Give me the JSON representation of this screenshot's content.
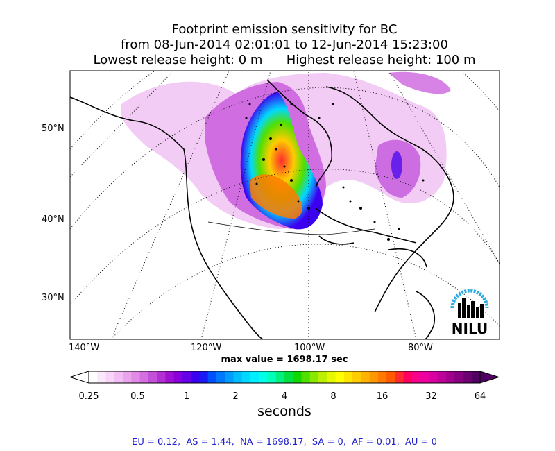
{
  "title": {
    "line1": "Footprint emission sensitivity for BC",
    "line2": "from 08-Jun-2014 02:01:01 to 12-Jun-2014 15:23:00",
    "line3": "Lowest release height: 0 m      Highest release height: 100 m"
  },
  "map": {
    "lat_labels": [
      "50°N",
      "40°N",
      "30°N"
    ],
    "lon_labels": [
      "140°W",
      "120°W",
      "100°W",
      "80°W"
    ],
    "max_value_text": "max value = 1698.17 sec",
    "logo_text": "NILU",
    "logo_color": "#29abe2"
  },
  "colorbar": {
    "ticks": [
      "0.25",
      "0.5",
      "1",
      "2",
      "4",
      "8",
      "16",
      "32",
      "64"
    ],
    "label": "seconds",
    "colors": [
      "#ffffff",
      "#fce8fc",
      "#f8d4f8",
      "#f2bdf2",
      "#eaa3ec",
      "#e18ae6",
      "#d46fe0",
      "#c44fda",
      "#b32ed4",
      "#a010d0",
      "#8a00dc",
      "#6600e8",
      "#3c00f0",
      "#1a1af5",
      "#0050ff",
      "#0078ff",
      "#009cff",
      "#00bcff",
      "#00d8ff",
      "#00eeff",
      "#00ffe6",
      "#00ffb8",
      "#00f080",
      "#00e040",
      "#10d800",
      "#50e000",
      "#88e800",
      "#bcf000",
      "#e6f800",
      "#ffff00",
      "#ffe600",
      "#ffcc00",
      "#ffb200",
      "#ff9800",
      "#ff7a00",
      "#ff5a00",
      "#ff2a30",
      "#ff0060",
      "#f80088",
      "#ee00a0",
      "#d800a0",
      "#c0009a",
      "#a4008e",
      "#880080",
      "#6c0070",
      "#500060"
    ]
  },
  "regions_text": "EU = 0.12,  AS = 1.44,  NA = 1698.17,  SA = 0,  AF = 0.01,  AU = 0"
}
